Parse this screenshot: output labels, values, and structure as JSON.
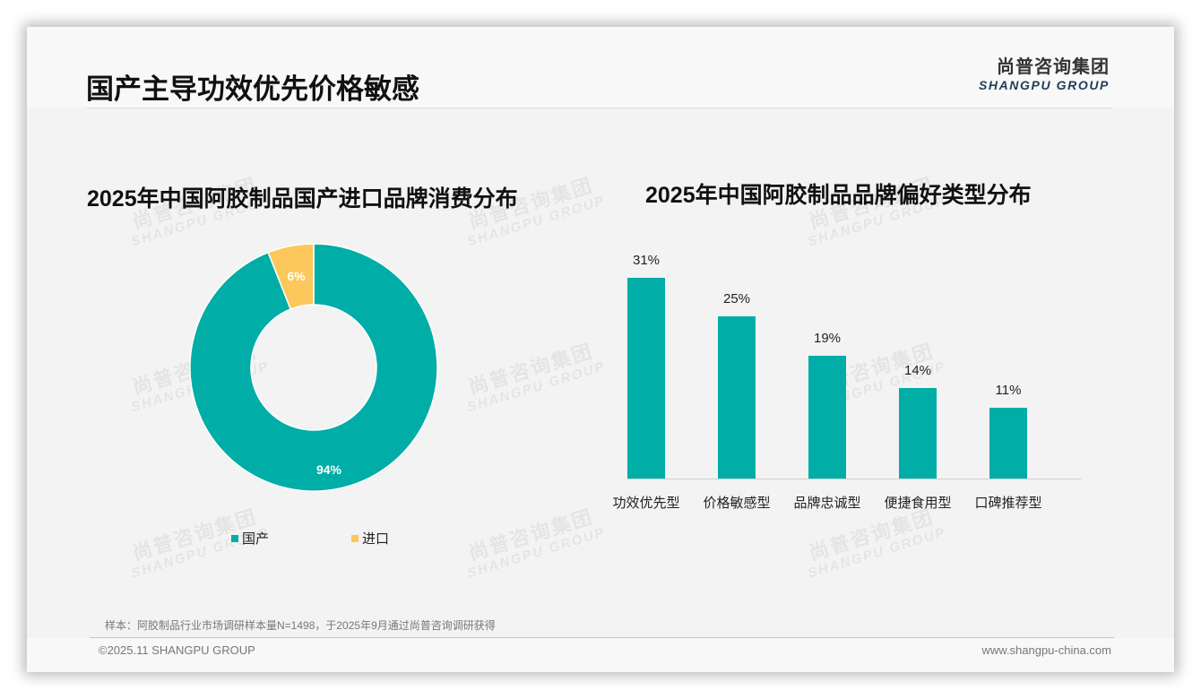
{
  "header": {
    "title": "国产主导功效优先价格敏感",
    "logo_cn": "尚普咨询集团",
    "logo_en": "SHANGPU GROUP"
  },
  "colors": {
    "teal": "#00ada7",
    "yellow": "#fcc85c",
    "logo_blue": "#1f3c5a"
  },
  "watermark": {
    "cn": "尚普咨询集团",
    "en": "SHANGPU GROUP"
  },
  "footer": {
    "note": "样本：阿胶制品行业市场调研样本量N=1498，于2025年9月通过尚普咨询调研获得",
    "copyright": "©2025.11 SHANGPU GROUP",
    "website": "www.shangpu-china.com"
  },
  "chart_data": [
    {
      "type": "pie",
      "donut": true,
      "title": "2025年中国阿胶制品国产进口品牌消费分布",
      "categories": [
        "国产",
        "进口"
      ],
      "values": [
        94,
        6
      ],
      "labels": [
        "94%",
        "6%"
      ],
      "colors": [
        "#00ada7",
        "#fcc85c"
      ],
      "legend_position": "bottom"
    },
    {
      "type": "bar",
      "title": "2025年中国阿胶制品品牌偏好类型分布",
      "categories": [
        "功效优先型",
        "价格敏感型",
        "品牌忠诚型",
        "便捷食用型",
        "口碑推荐型"
      ],
      "values": [
        31,
        25,
        19,
        14,
        11
      ],
      "labels": [
        "31%",
        "25%",
        "19%",
        "14%",
        "11%"
      ],
      "color": "#00ada7",
      "xlabel": "",
      "ylabel": "",
      "grid": false,
      "unit": "%"
    }
  ]
}
